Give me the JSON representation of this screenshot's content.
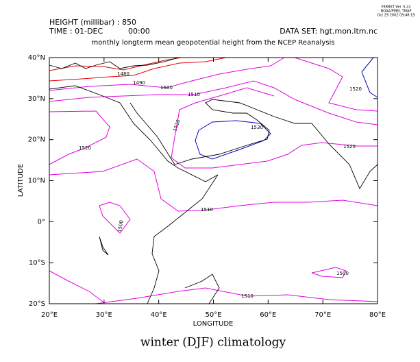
{
  "chart_data": {
    "type": "contour",
    "header": {
      "software": "FERRET Ver. 5.22",
      "lab": "NOAA/PMEL TMAP",
      "date": "Oct 29 2002 09:48:19",
      "variable": "HEIGHT (millibar) : 850",
      "time": "TIME : 01-DEC",
      "hour": "00:00",
      "dataset": "DATA SET: hgt.mon.ltm.nc"
    },
    "title": "monthly longterm mean geopotential height from the NCEP Reanalysis",
    "x_label": "LONGITUDE",
    "y_label": "LATITUDE",
    "caption": "winter (DJF) climatology",
    "xlim": [
      20,
      80
    ],
    "ylim": [
      -20,
      40
    ],
    "xticks": [
      {
        "value": 20,
        "label": "20°E"
      },
      {
        "value": 30,
        "label": "30°E"
      },
      {
        "value": 40,
        "label": "40°E"
      },
      {
        "value": 50,
        "label": "50°E"
      },
      {
        "value": 60,
        "label": "60°E"
      },
      {
        "value": 70,
        "label": "70°E"
      },
      {
        "value": 80,
        "label": "80°E"
      }
    ],
    "yticks": [
      {
        "value": -20,
        "label": "20°S"
      },
      {
        "value": -10,
        "label": "10°S"
      },
      {
        "value": 0,
        "label": "0°"
      },
      {
        "value": 10,
        "label": "10°N"
      },
      {
        "value": 20,
        "label": "20°N"
      },
      {
        "value": 30,
        "label": "30°N"
      },
      {
        "value": 40,
        "label": "40°N"
      }
    ],
    "contours": [
      {
        "level": 1480,
        "color": "#e00000"
      },
      {
        "level": 1490,
        "color": "#e00000"
      },
      {
        "level": 1500,
        "color": "#e000e0"
      },
      {
        "level": 1510,
        "color": "#e000e0"
      },
      {
        "level": 1520,
        "color": "#e000e0"
      },
      {
        "level": 1530,
        "color": "#0000c0"
      }
    ]
  }
}
